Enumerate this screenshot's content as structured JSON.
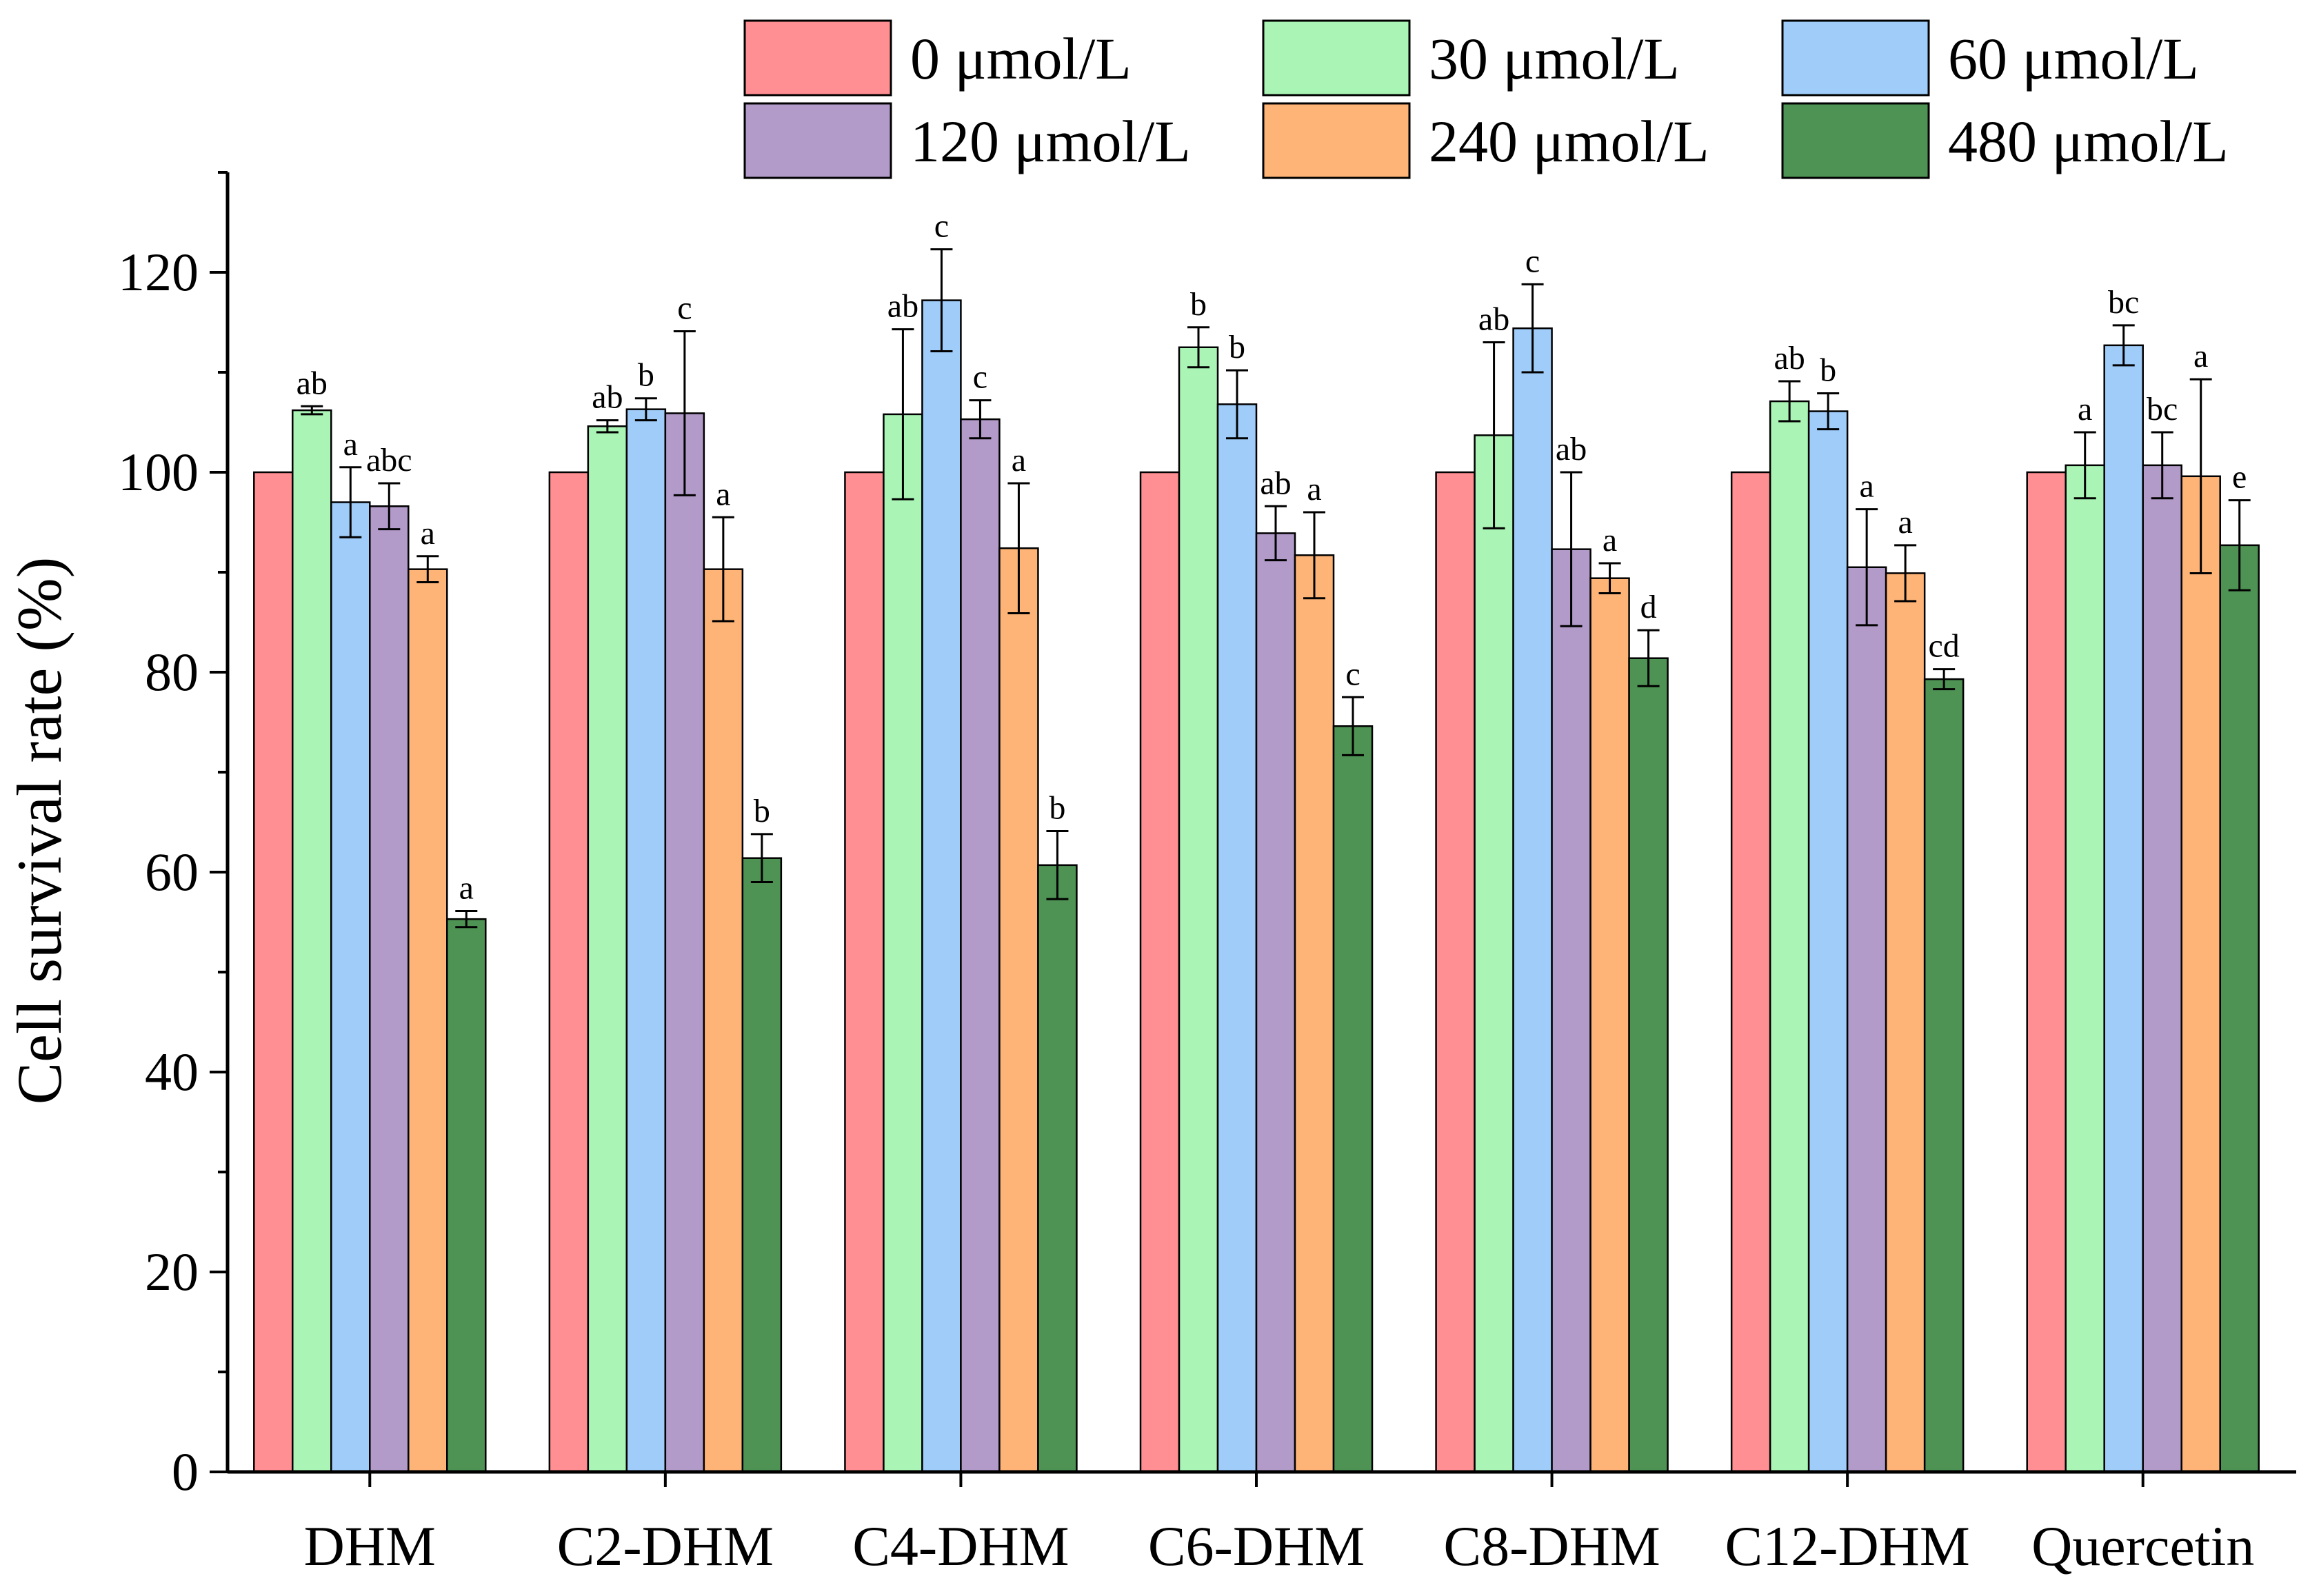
{
  "chart_data": {
    "type": "bar",
    "title": "",
    "xlabel": "",
    "ylabel": "Cell survival rate (%)",
    "ylim": [
      0,
      130
    ],
    "yticks": [
      0,
      20,
      40,
      60,
      80,
      100,
      120
    ],
    "categories": [
      "DHM",
      "C2-DHM",
      "C4-DHM",
      "C6-DHM",
      "C8-DHM",
      "C12-DHM",
      "Quercetin"
    ],
    "legend_position": "top-right",
    "series": [
      {
        "name": "0 μmol/L",
        "color": "#FF8F92",
        "values": [
          100,
          100,
          100,
          100,
          100,
          100,
          100
        ],
        "errors": [
          0,
          0,
          0,
          0,
          0,
          0,
          0
        ],
        "labels": [
          "",
          "",
          "",
          "",
          "",
          "",
          ""
        ]
      },
      {
        "name": "30 μmol/L",
        "color": "#AAF5B5",
        "values": [
          106.2,
          104.6,
          105.8,
          112.5,
          103.7,
          107.1,
          100.7
        ],
        "errors": [
          0.4,
          0.6,
          8.5,
          2.0,
          9.3,
          2.0,
          3.3
        ],
        "labels": [
          "ab",
          "ab",
          "ab",
          "b",
          "ab",
          "ab",
          "a"
        ]
      },
      {
        "name": "60 μmol/L",
        "color": "#9FCCF8",
        "values": [
          97.0,
          106.3,
          117.2,
          106.8,
          114.4,
          106.1,
          112.7
        ],
        "errors": [
          3.5,
          1.1,
          5.1,
          3.4,
          4.4,
          1.8,
          2.0
        ],
        "labels": [
          "a",
          "b",
          "c",
          "b",
          "c",
          "b",
          "bc"
        ]
      },
      {
        "name": "120 μmol/L",
        "color": "#B29AC9",
        "values": [
          96.6,
          105.9,
          105.3,
          93.9,
          92.3,
          90.5,
          100.7
        ],
        "errors": [
          2.3,
          8.2,
          1.9,
          2.7,
          7.7,
          5.8,
          3.3
        ],
        "labels": [
          "abc",
          "c",
          "c",
          "ab",
          "ab",
          "a",
          "bc"
        ]
      },
      {
        "name": "240 μmol/L",
        "color": "#FEB477",
        "values": [
          90.3,
          90.3,
          92.4,
          91.7,
          89.4,
          89.9,
          99.6
        ],
        "errors": [
          1.3,
          5.2,
          6.5,
          4.3,
          1.5,
          2.8,
          9.7
        ],
        "labels": [
          "a",
          "a",
          "a",
          "a",
          "a",
          "a",
          "a"
        ]
      },
      {
        "name": "480 μmol/L",
        "color": "#4E9254",
        "values": [
          55.3,
          61.4,
          60.7,
          74.6,
          81.4,
          79.3,
          92.7
        ],
        "errors": [
          0.8,
          2.4,
          3.4,
          2.9,
          2.8,
          1.0,
          4.5
        ],
        "labels": [
          "a",
          "b",
          "b",
          "c",
          "d",
          "cd",
          "e"
        ]
      }
    ]
  }
}
